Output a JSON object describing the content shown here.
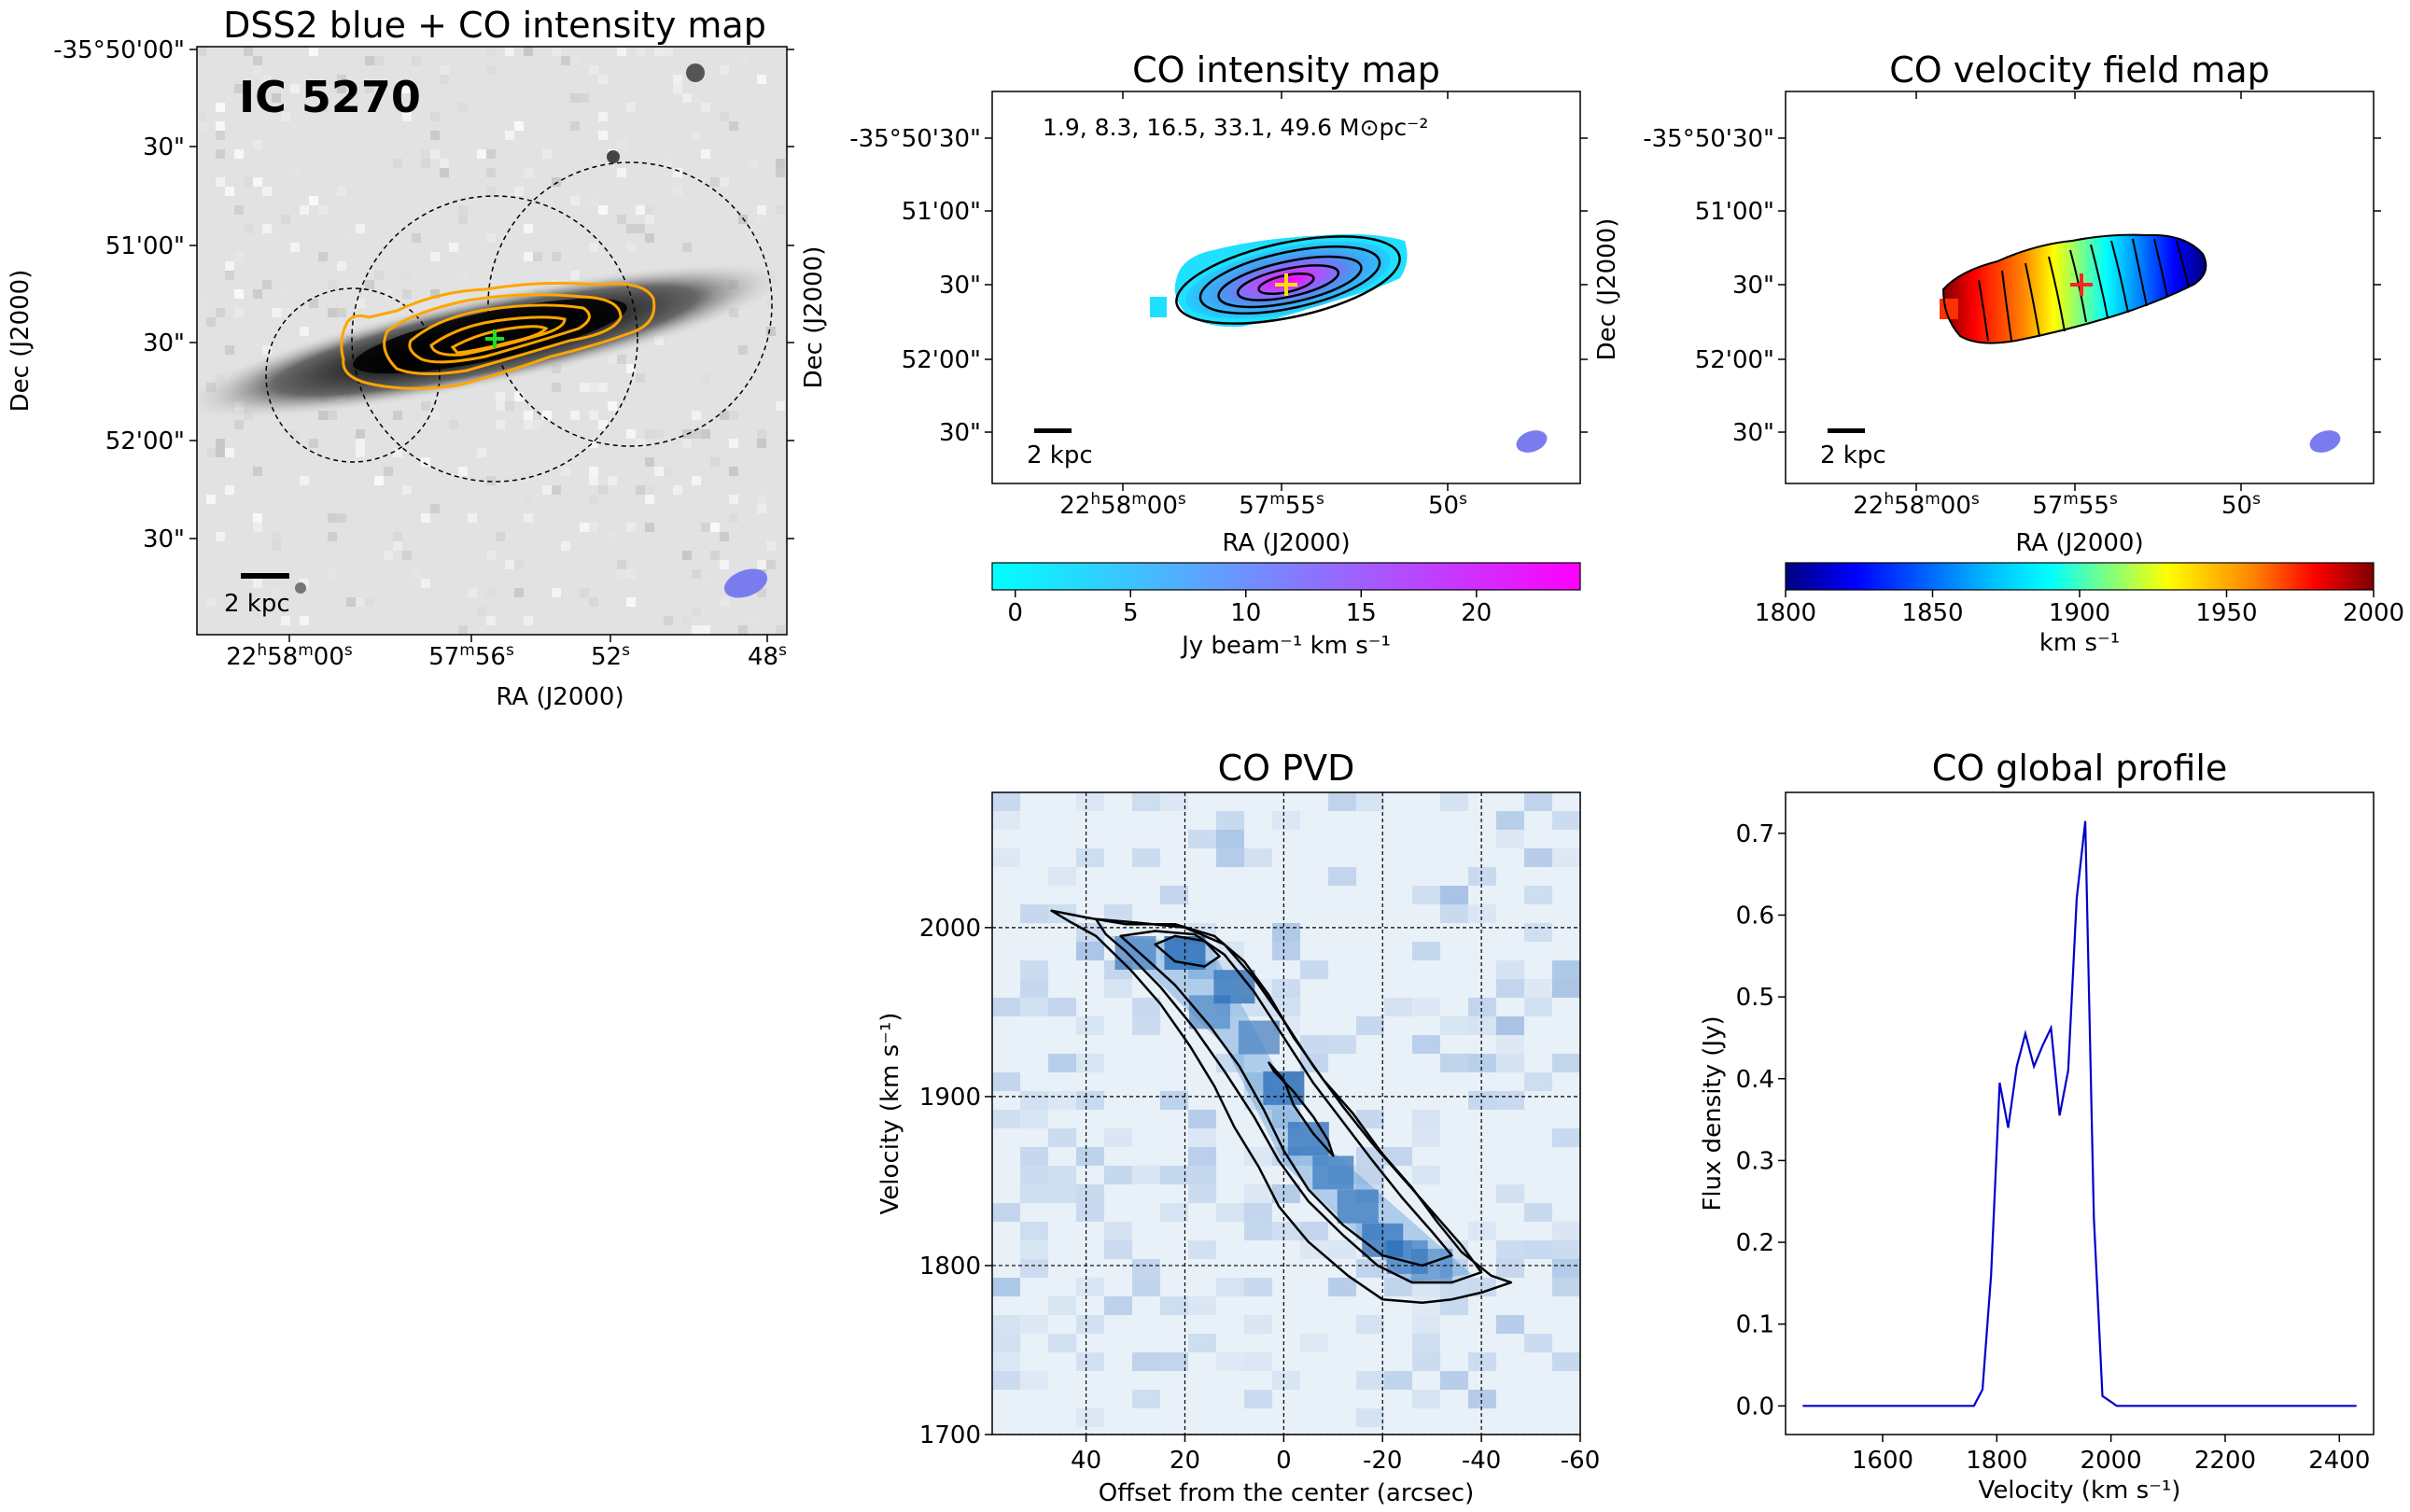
{
  "colors": {
    "contour_orange": "#ffa500",
    "contour_black": "#000000",
    "beam": "#7b7bf0",
    "profile_line": "#0000cc",
    "cross_green": "#22dd22",
    "cross_yellow": "#ffdd00",
    "cross_red": "#ff2222"
  },
  "chart_data": [
    {
      "type": "image",
      "id": "dss2",
      "title": "DSS2 blue + CO intensity map",
      "galaxy_label": "IC 5270",
      "xlabel": "RA (J2000)",
      "ylabel": "Dec (J2000)",
      "x_ticks": [
        "22h58m00s",
        "57m56s",
        "52s",
        "48s"
      ],
      "y_ticks": [
        "-35°50'00\"",
        "30\"",
        "51'00\"",
        "30\"",
        "52'00\"",
        "30\""
      ],
      "right_label": "Dec (J2000)",
      "scalebar_label": "2 kpc"
    },
    {
      "type": "image",
      "id": "co-intensity",
      "title": "CO intensity map",
      "annotation": "1.9, 8.3, 16.5, 33.1, 49.6 M⊙pc⁻²",
      "xlabel": "RA (J2000)",
      "ylabel": "Dec (J2000)",
      "x_ticks": [
        "22h58m00s",
        "57m55s",
        "50s"
      ],
      "y_ticks": [
        "-35°50'30\"",
        "51'00\"",
        "30\"",
        "52'00\"",
        "30\""
      ],
      "scalebar_label": "2 kpc",
      "colorbar": {
        "label": "Jy beam⁻¹ km s⁻¹",
        "range": [
          -1.0,
          24.5
        ],
        "ticks": [
          0,
          5,
          10,
          15,
          20
        ],
        "colors": [
          "#00ffff",
          "#ff00ff"
        ]
      }
    },
    {
      "type": "image",
      "id": "co-velocity",
      "title": "CO velocity field map",
      "xlabel": "RA (J2000)",
      "ylabel": "Dec (J2000)",
      "x_ticks": [
        "22h58m00s",
        "57m55s",
        "50s"
      ],
      "y_ticks": [
        "-35°50'30\"",
        "51'00\"",
        "30\"",
        "52'00\"",
        "30\""
      ],
      "scalebar_label": "2 kpc",
      "colorbar": {
        "label": "km s⁻¹",
        "range": [
          1800,
          2000
        ],
        "ticks": [
          1800,
          1850,
          1900,
          1950,
          2000
        ],
        "colors": [
          "#00007f",
          "#0000ff",
          "#007fff",
          "#00ffff",
          "#7fff7f",
          "#ffff00",
          "#ff7f00",
          "#ff0000",
          "#7f0000"
        ]
      }
    },
    {
      "type": "heatmap",
      "id": "pvd",
      "title": "CO PVD",
      "xlabel": "Offset from the center (arcsec)",
      "ylabel": "Velocity (km s⁻¹)",
      "xlim": [
        59,
        -60
      ],
      "ylim": [
        1700,
        2080
      ],
      "x_ticks": [
        40,
        20,
        0,
        -20,
        -40,
        -60
      ],
      "x_tick_labels": [
        "40",
        "20",
        "0",
        "-20",
        "-40",
        "-60"
      ],
      "y_ticks": [
        1700,
        1800,
        1900,
        2000
      ],
      "grid": true,
      "contours": [
        {
          "level": 1,
          "points": [
            [
              47,
              2010
            ],
            [
              40,
              2006
            ],
            [
              32,
              2002
            ],
            [
              22,
              2002
            ],
            [
              14,
              1995
            ],
            [
              8,
              1980
            ],
            [
              3,
              1960
            ],
            [
              -2,
              1935
            ],
            [
              -8,
              1910
            ],
            [
              -14,
              1890
            ],
            [
              -20,
              1866
            ],
            [
              -26,
              1846
            ],
            [
              -31,
              1826
            ],
            [
              -36,
              1808
            ],
            [
              -42,
              1794
            ],
            [
              -46,
              1790
            ],
            [
              -40,
              1784
            ],
            [
              -34,
              1780
            ],
            [
              -28,
              1778
            ],
            [
              -20,
              1780
            ],
            [
              -13,
              1794
            ],
            [
              -5,
              1814
            ],
            [
              1,
              1835
            ],
            [
              5,
              1858
            ],
            [
              10,
              1882
            ],
            [
              14,
              1906
            ],
            [
              19,
              1930
            ],
            [
              25,
              1955
            ],
            [
              31,
              1975
            ],
            [
              38,
              1995
            ],
            [
              43,
              2003
            ],
            [
              47,
              2010
            ]
          ]
        },
        {
          "level": 2,
          "points": [
            [
              38,
              2005
            ],
            [
              30,
              2003
            ],
            [
              20,
              2000
            ],
            [
              12,
              1990
            ],
            [
              6,
              1970
            ],
            [
              0,
              1945
            ],
            [
              -6,
              1918
            ],
            [
              -12,
              1894
            ],
            [
              -18,
              1872
            ],
            [
              -24,
              1852
            ],
            [
              -30,
              1832
            ],
            [
              -36,
              1812
            ],
            [
              -40,
              1796
            ],
            [
              -34,
              1790
            ],
            [
              -26,
              1790
            ],
            [
              -19,
              1800
            ],
            [
              -12,
              1818
            ],
            [
              -5,
              1838
            ],
            [
              1,
              1862
            ],
            [
              6,
              1888
            ],
            [
              12,
              1915
            ],
            [
              18,
              1940
            ],
            [
              25,
              1965
            ],
            [
              32,
              1986
            ],
            [
              36,
              1996
            ],
            [
              38,
              2005
            ]
          ]
        },
        {
          "level": 3,
          "points": [
            [
              33,
              1995
            ],
            [
              26,
              1998
            ],
            [
              18,
              1996
            ],
            [
              12,
              1984
            ],
            [
              6,
              1962
            ],
            [
              0,
              1935
            ],
            [
              -6,
              1908
            ],
            [
              -12,
              1885
            ],
            [
              -18,
              1862
            ],
            [
              -24,
              1840
            ],
            [
              -30,
              1820
            ],
            [
              -34,
              1806
            ],
            [
              -28,
              1800
            ],
            [
              -20,
              1806
            ],
            [
              -12,
              1824
            ],
            [
              -5,
              1845
            ],
            [
              0,
              1868
            ],
            [
              4,
              1892
            ],
            [
              9,
              1918
            ],
            [
              15,
              1942
            ],
            [
              22,
              1966
            ],
            [
              28,
              1982
            ],
            [
              33,
              1995
            ]
          ]
        },
        {
          "level": 4,
          "points": [
            [
              26,
              1990
            ],
            [
              22,
              1995
            ],
            [
              16,
              1992
            ],
            [
              13,
              1983
            ],
            [
              16,
              1977
            ],
            [
              22,
              1980
            ],
            [
              26,
              1990
            ]
          ]
        },
        {
          "level": 4,
          "points": [
            [
              3,
              1920
            ],
            [
              0,
              1910
            ],
            [
              -2,
              1895
            ],
            [
              -6,
              1878
            ],
            [
              -10,
              1865
            ],
            [
              -9,
              1874
            ],
            [
              -6,
              1888
            ],
            [
              -2,
              1903
            ],
            [
              2,
              1915
            ],
            [
              3,
              1920
            ]
          ]
        }
      ],
      "intensity_cells": [
        {
          "offset": 30,
          "velocity": 1985,
          "value": 0.5
        },
        {
          "offset": 20,
          "velocity": 1985,
          "value": 0.9
        },
        {
          "offset": 10,
          "velocity": 1965,
          "value": 0.7
        },
        {
          "offset": 5,
          "velocity": 1935,
          "value": 0.5
        },
        {
          "offset": 0,
          "velocity": 1905,
          "value": 0.8
        },
        {
          "offset": -5,
          "velocity": 1875,
          "value": 0.7
        },
        {
          "offset": -10,
          "velocity": 1855,
          "value": 0.6
        },
        {
          "offset": -15,
          "velocity": 1835,
          "value": 0.6
        },
        {
          "offset": -20,
          "velocity": 1815,
          "value": 0.7
        },
        {
          "offset": -25,
          "velocity": 1805,
          "value": 0.5
        },
        {
          "offset": 15,
          "velocity": 1950,
          "value": 0.4
        },
        {
          "offset": -30,
          "velocity": 1800,
          "value": 0.3
        }
      ]
    },
    {
      "type": "line",
      "id": "profile",
      "title": "CO global profile",
      "xlabel": "Velocity (km s⁻¹)",
      "ylabel": "Flux density (Jy)",
      "xlim": [
        1430,
        2460
      ],
      "ylim": [
        -0.035,
        0.75
      ],
      "x_ticks": [
        1600,
        1800,
        2000,
        2200,
        2400
      ],
      "y_ticks": [
        0.0,
        0.1,
        0.2,
        0.3,
        0.4,
        0.5,
        0.6,
        0.7
      ],
      "series": [
        {
          "name": "CO",
          "x": [
            1460,
            1640,
            1760,
            1775,
            1790,
            1805,
            1820,
            1835,
            1850,
            1865,
            1880,
            1895,
            1910,
            1925,
            1940,
            1955,
            1970,
            1985,
            2000,
            2010,
            2025,
            2045,
            2060,
            2080,
            2200,
            2300,
            2430
          ],
          "y": [
            0.0,
            0.0,
            0.0,
            0.02,
            0.16,
            0.395,
            0.34,
            0.415,
            0.455,
            0.415,
            0.44,
            0.462,
            0.355,
            0.41,
            0.62,
            0.715,
            0.23,
            0.012,
            0.005,
            0.0,
            0.0,
            0.0,
            0.0,
            0.0,
            0.0,
            0.0,
            0.0
          ]
        }
      ]
    }
  ]
}
